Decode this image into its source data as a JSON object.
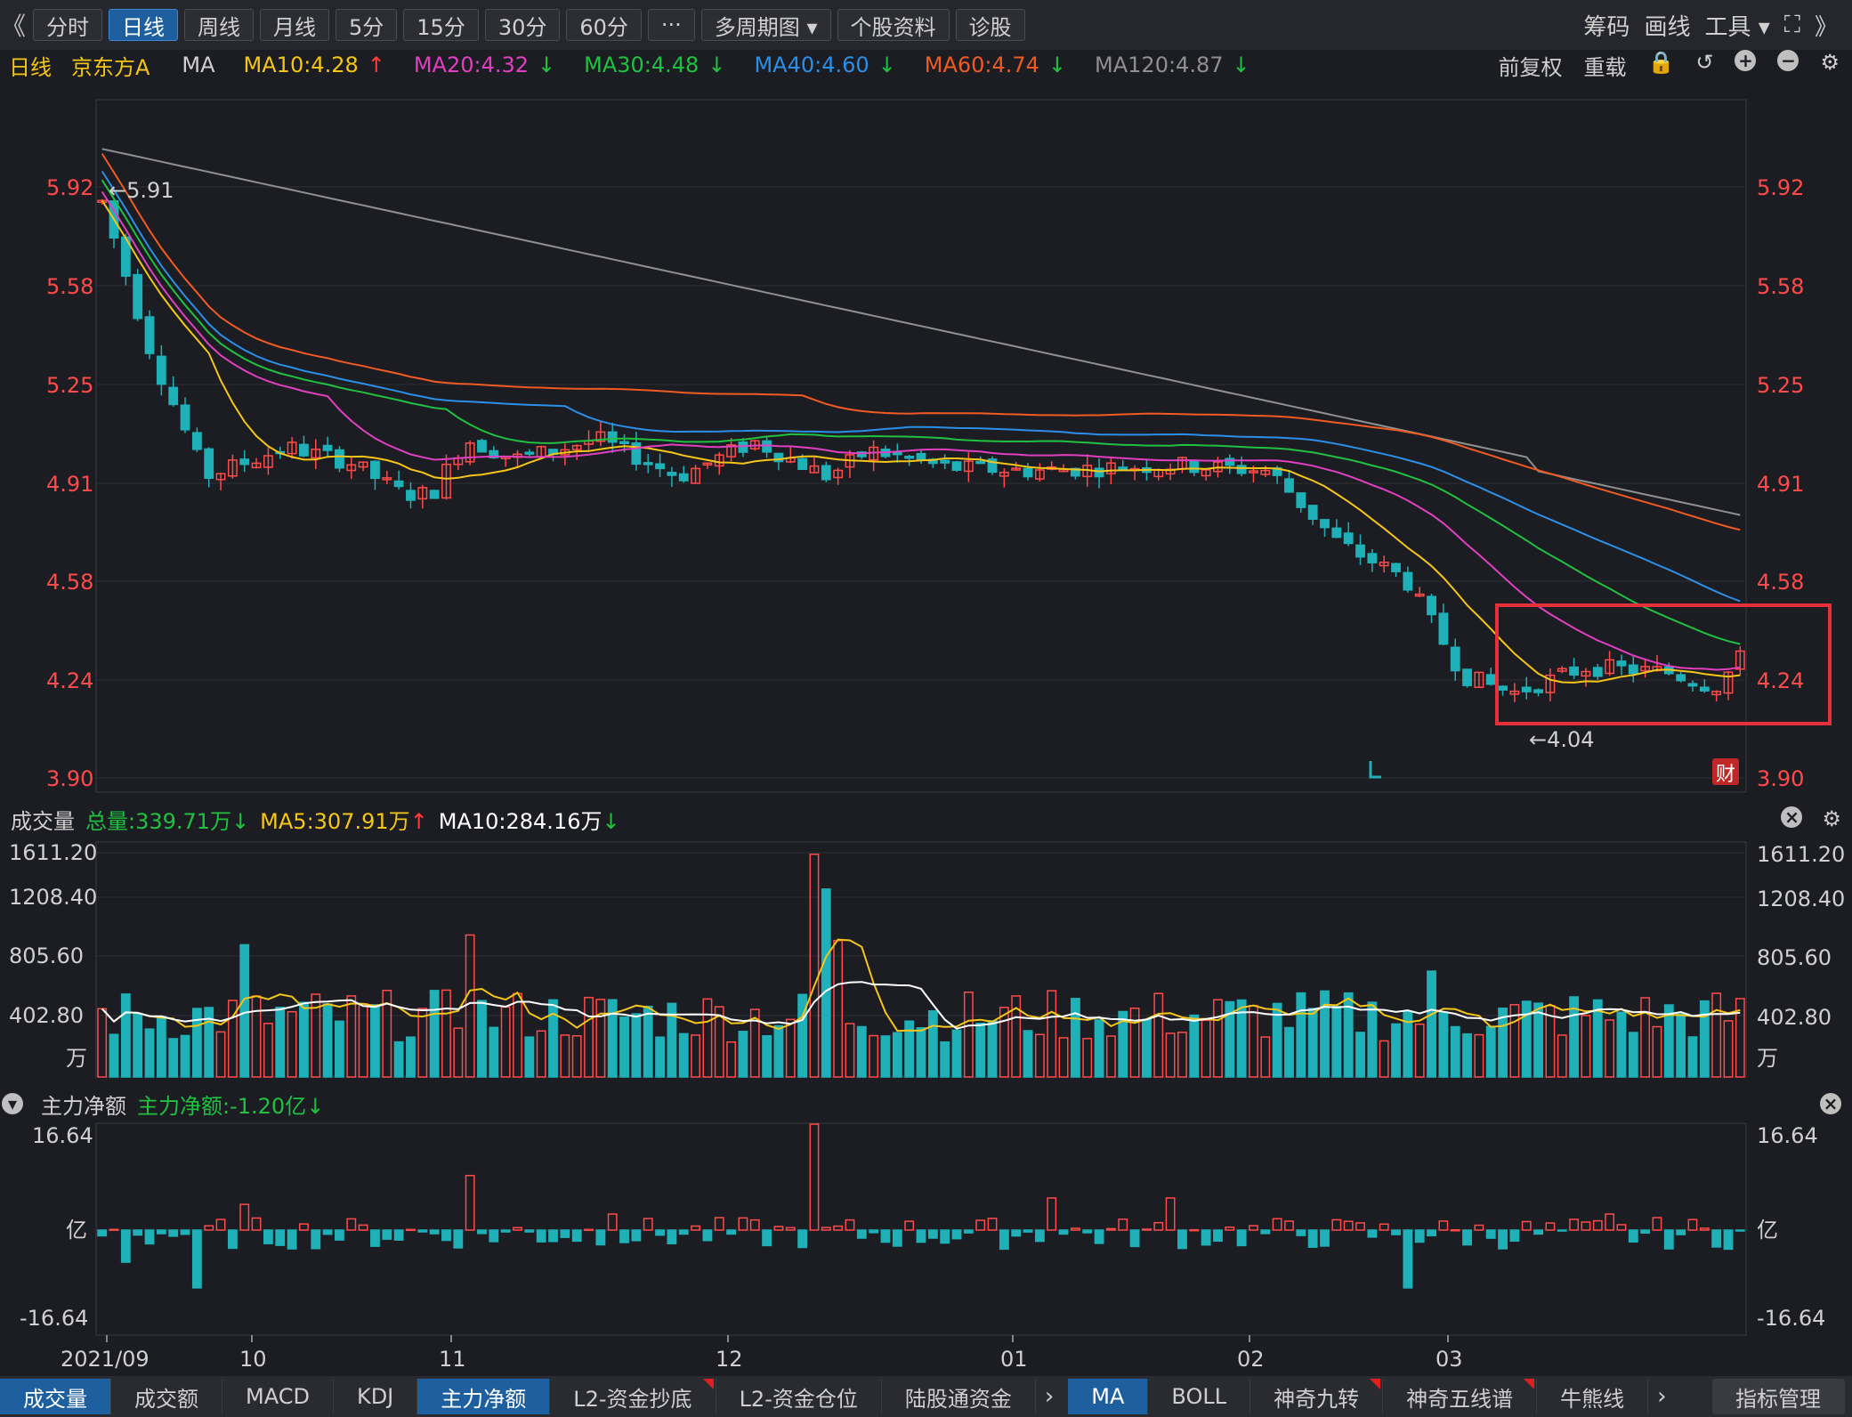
{
  "toolbar": {
    "prev": "《",
    "next": "》",
    "periods": [
      {
        "label": "分时"
      },
      {
        "label": "日线"
      },
      {
        "label": "周线"
      },
      {
        "label": "月线"
      },
      {
        "label": "5分"
      },
      {
        "label": "15分"
      },
      {
        "label": "30分"
      },
      {
        "label": "60分"
      },
      {
        "label": "···"
      }
    ],
    "multi_period": "多周期图 ▾",
    "stock_info": "个股资料",
    "diagnose": "诊股",
    "right": {
      "chips": "筹码",
      "draw": "画线",
      "tools": "工具 ▾",
      "fullscreen": "⛶"
    },
    "active": "日线"
  },
  "info": {
    "period": "日线",
    "stock": "京东方A",
    "indicator": "MA",
    "ma": [
      {
        "label": "MA10:4.28",
        "arrow": "↑",
        "color": "#f5c518",
        "arrow_color": "#ff3b3b"
      },
      {
        "label": "MA20:4.32",
        "arrow": "↓",
        "color": "#e040c0",
        "arrow_color": "#20c040"
      },
      {
        "label": "MA30:4.48",
        "arrow": "↓",
        "color": "#20c040",
        "arrow_color": "#20c040"
      },
      {
        "label": "MA40:4.60",
        "arrow": "↓",
        "color": "#2b8fe8",
        "arrow_color": "#20c040"
      },
      {
        "label": "MA60:4.74",
        "arrow": "↓",
        "color": "#f05a23",
        "arrow_color": "#20c040"
      },
      {
        "label": "MA120:4.87",
        "arrow": "↓",
        "color": "#909090",
        "arrow_color": "#20c040"
      }
    ],
    "adjust": "前复权",
    "reload": "重载"
  },
  "price_axis": {
    "ticks": [
      "5.92",
      "5.58",
      "5.25",
      "4.91",
      "4.58",
      "4.24",
      "3.90"
    ]
  },
  "annotations": {
    "high": "←5.91",
    "low": "←4.04",
    "fin_badge": "财"
  },
  "volume": {
    "title": "成交量",
    "total": "总量:339.71万",
    "total_arrow": "↓",
    "ma5": "MA5:307.91万",
    "ma5_arrow": "↑",
    "ma10": "MA10:284.16万",
    "ma10_arrow": "↓",
    "ticks": [
      "1611.20",
      "1208.40",
      "805.60",
      "402.80"
    ],
    "unit": "万"
  },
  "mainforce": {
    "title": "主力净额",
    "value": "主力净额:-1.20亿",
    "arrow": "↓",
    "ticks": [
      "16.64",
      "亿",
      "-16.64"
    ]
  },
  "dates": [
    "2021/09",
    "10",
    "11",
    "12",
    "01",
    "02",
    "03"
  ],
  "bottom_tabs": [
    {
      "label": "成交量",
      "active": true
    },
    {
      "label": "成交额"
    },
    {
      "label": "MACD"
    },
    {
      "label": "KDJ"
    },
    {
      "label": "主力净额",
      "active": true
    },
    {
      "label": "L2-资金抄底",
      "flag": true
    },
    {
      "label": "L2-资金仓位"
    },
    {
      "label": "陆股通资金"
    }
  ],
  "bottom_tabs2": [
    {
      "label": "MA",
      "active": true
    },
    {
      "label": "BOLL"
    },
    {
      "label": "神奇九转",
      "flag": true
    },
    {
      "label": "神奇五线谱",
      "flag": true
    },
    {
      "label": "牛熊线"
    }
  ],
  "indicator_mgmt": "指标管理",
  "colors": {
    "up": "#ff4a4a",
    "down": "#1fb0b8",
    "ma10": "#f5c518",
    "ma20": "#e040c0",
    "ma30": "#20c040",
    "ma40": "#2b8fe8",
    "ma60": "#f05a23",
    "ma120": "#909090",
    "highlight": "#e8303a"
  }
}
